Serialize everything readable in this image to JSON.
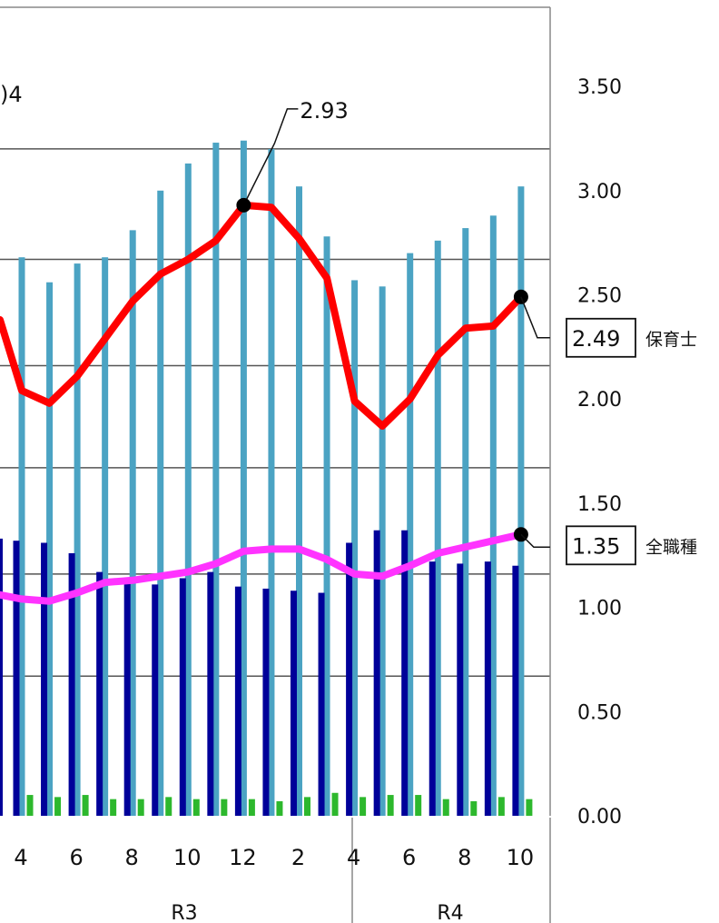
{
  "chart_data": {
    "type": "bar",
    "title": "",
    "xlabel": "",
    "ylabel": "",
    "ylim": [
      0,
      3.75
    ],
    "y_ticks": [
      "0.00",
      "0.50",
      "1.00",
      "1.50",
      "2.00",
      "2.50",
      "3.00",
      "3.50"
    ],
    "grid": true,
    "top_left_fragment": ")4",
    "x_tick_labels": [
      "4",
      "6",
      "8",
      "10",
      "12",
      "2",
      "4",
      "6",
      "8",
      "10"
    ],
    "groups": [
      {
        "label": "R3"
      },
      {
        "label": "R4"
      }
    ],
    "months": [
      4,
      5,
      6,
      7,
      8,
      9,
      10,
      11,
      12,
      1,
      2,
      3,
      4,
      5,
      6,
      7,
      8,
      9,
      10
    ],
    "series": [
      {
        "kind": "bar",
        "color": "#4BA3C3",
        "values": [
          2.68,
          2.56,
          2.65,
          2.68,
          2.81,
          3.0,
          3.13,
          3.23,
          3.24,
          3.2,
          3.02,
          2.78,
          2.57,
          2.54,
          2.7,
          2.76,
          2.82,
          2.88,
          3.02
        ]
      },
      {
        "kind": "bar",
        "color": "#000099",
        "values": [
          1.32,
          1.31,
          1.26,
          1.17,
          1.14,
          1.11,
          1.14,
          1.17,
          1.1,
          1.09,
          1.08,
          1.07,
          1.31,
          1.37,
          1.37,
          1.22,
          1.21,
          1.22,
          1.2
        ]
      },
      {
        "kind": "bar",
        "color": "#2DB82D",
        "values": [
          0.1,
          0.09,
          0.1,
          0.08,
          0.08,
          0.09,
          0.08,
          0.08,
          0.08,
          0.07,
          0.09,
          0.11,
          0.09,
          0.1,
          0.1,
          0.08,
          0.07,
          0.09,
          0.08
        ]
      },
      {
        "kind": "line",
        "name": "保育士",
        "color": "#FF0000",
        "values": [
          2.04,
          1.98,
          2.11,
          2.29,
          2.47,
          2.6,
          2.67,
          2.76,
          2.93,
          2.92,
          2.77,
          2.58,
          1.99,
          1.87,
          2.0,
          2.21,
          2.34,
          2.35,
          2.49
        ]
      },
      {
        "kind": "line",
        "name": "全職種",
        "color": "#FF33FF",
        "values": [
          1.04,
          1.03,
          1.07,
          1.12,
          1.13,
          1.15,
          1.17,
          1.21,
          1.27,
          1.28,
          1.28,
          1.23,
          1.16,
          1.15,
          1.2,
          1.26,
          1.29,
          1.32,
          1.35
        ]
      }
    ],
    "callouts": [
      {
        "value": "2.93"
      },
      {
        "value": "2.49",
        "label": "保育士"
      },
      {
        "value": "1.35",
        "label": "全職種"
      }
    ]
  }
}
